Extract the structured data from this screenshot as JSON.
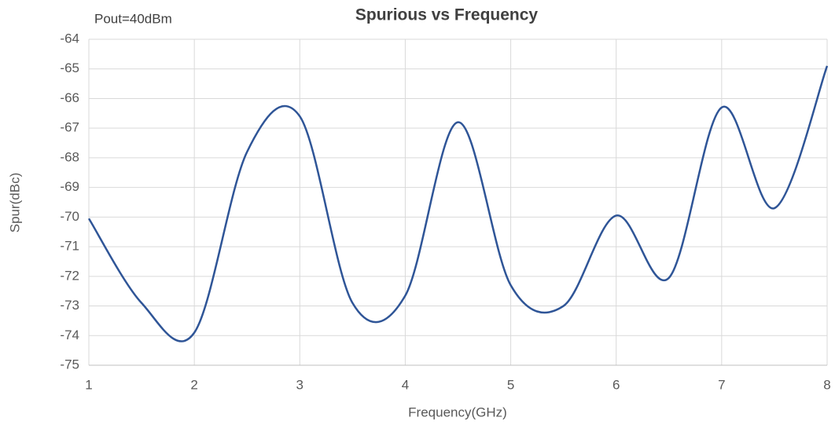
{
  "chart_data": {
    "type": "line",
    "title": "Spurious vs Frequency",
    "annotation": "Pout=40dBm",
    "x_label": "Frequency(GHz)",
    "y_label": "Spur(dBc)",
    "x": [
      1,
      1.5,
      2,
      2.5,
      3,
      3.5,
      4,
      4.5,
      5,
      5.5,
      6,
      6.5,
      7,
      7.5,
      8
    ],
    "series": [
      {
        "name": "Spur",
        "color": "#2f5597",
        "values": [
          -70.05,
          -72.9,
          -73.9,
          -67.8,
          -66.6,
          -72.9,
          -72.65,
          -66.8,
          -72.3,
          -73.0,
          -69.95,
          -72.05,
          -66.3,
          -69.7,
          -64.9
        ]
      }
    ],
    "xlim": [
      1,
      8
    ],
    "xticks": [
      1,
      2,
      3,
      4,
      5,
      6,
      7,
      8
    ],
    "ylim": [
      -75,
      -64
    ],
    "yticks": [
      -75,
      -74,
      -73,
      -72,
      -71,
      -70,
      -69,
      -68,
      -67,
      -66,
      -65,
      -64
    ],
    "grid": true,
    "smooth": true
  }
}
